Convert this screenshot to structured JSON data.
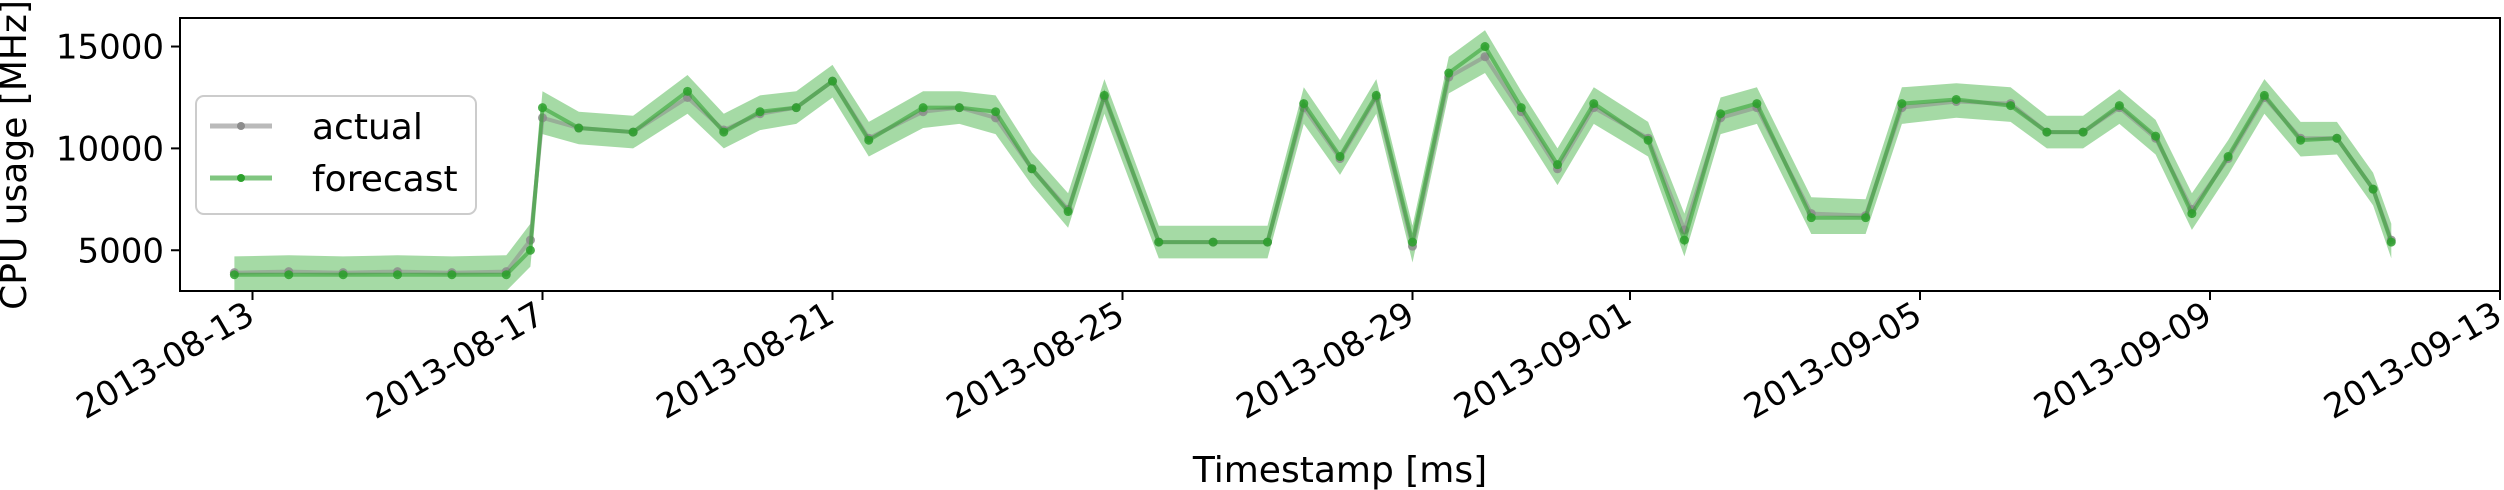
{
  "chart_data": {
    "type": "line",
    "title": "",
    "xlabel": "Timestamp [ms]",
    "ylabel": "CPU usage [MHz]",
    "x_ticks": [
      "2013-08-13",
      "2013-08-17",
      "2013-08-21",
      "2013-08-25",
      "2013-08-29",
      "2013-09-01",
      "2013-09-05",
      "2013-09-09",
      "2013-09-13"
    ],
    "y_ticks": [
      5000,
      10000,
      15000
    ],
    "ylim": [
      3000,
      16400
    ],
    "xlim": [
      "2013-08-12",
      "2013-09-13"
    ],
    "legend": {
      "placement": "upper-left",
      "entries": [
        "actual",
        "forecast"
      ]
    },
    "colors": {
      "actual": "#8c8c8c",
      "forecast": "#2ca02c",
      "forecast_fill": "#8fd18f"
    },
    "series": [
      {
        "name": "actual",
        "x": [
          "2013-08-12T18:00",
          "2013-08-13T12:00",
          "2013-08-14T06:00",
          "2013-08-15T00:00",
          "2013-08-15T18:00",
          "2013-08-16T12:00",
          "2013-08-16T20:00",
          "2013-08-17T00:00",
          "2013-08-17T12:00",
          "2013-08-18T06:00",
          "2013-08-19T00:00",
          "2013-08-19T12:00",
          "2013-08-20T00:00",
          "2013-08-20T12:00",
          "2013-08-21T00:00",
          "2013-08-21T12:00",
          "2013-08-22T06:00",
          "2013-08-22T18:00",
          "2013-08-23T06:00",
          "2013-08-23T18:00",
          "2013-08-24T06:00",
          "2013-08-24T18:00",
          "2013-08-25T12:00",
          "2013-08-26T06:00",
          "2013-08-27T00:00",
          "2013-08-27T12:00",
          "2013-08-28T00:00",
          "2013-08-28T12:00",
          "2013-08-29T00:00",
          "2013-08-29T12:00",
          "2013-08-30T00:00",
          "2013-08-30T12:00",
          "2013-08-31T00:00",
          "2013-08-31T12:00",
          "2013-09-01T06:00",
          "2013-09-01T18:00",
          "2013-09-02T06:00",
          "2013-09-02T18:00",
          "2013-09-03T12:00",
          "2013-09-04T06:00",
          "2013-09-04T18:00",
          "2013-09-05T12:00",
          "2013-09-06T06:00",
          "2013-09-06T18:00",
          "2013-09-07T06:00",
          "2013-09-07T18:00",
          "2013-09-08T06:00",
          "2013-09-08T18:00",
          "2013-09-09T06:00",
          "2013-09-09T18:00",
          "2013-09-10T06:00",
          "2013-09-10T18:00",
          "2013-09-11T06:00",
          "2013-09-11T12:00"
        ],
        "values": [
          3900,
          3950,
          3900,
          3950,
          3900,
          3950,
          5500,
          11500,
          11000,
          10800,
          12500,
          10900,
          11700,
          12000,
          13300,
          10500,
          11800,
          12000,
          11500,
          9000,
          7000,
          12500,
          5400,
          5400,
          5400,
          12000,
          9500,
          12500,
          5200,
          13500,
          14500,
          11800,
          9000,
          12000,
          10500,
          6000,
          11500,
          12000,
          6800,
          6700,
          12000,
          12300,
          12200,
          10800,
          10800,
          12000,
          10500,
          7000,
          9500,
          12500,
          10500,
          10500,
          8000,
          5500
        ]
      },
      {
        "name": "forecast",
        "x": [
          "2013-08-12T18:00",
          "2013-08-13T12:00",
          "2013-08-14T06:00",
          "2013-08-15T00:00",
          "2013-08-15T18:00",
          "2013-08-16T12:00",
          "2013-08-16T20:00",
          "2013-08-17T00:00",
          "2013-08-17T12:00",
          "2013-08-18T06:00",
          "2013-08-19T00:00",
          "2013-08-19T12:00",
          "2013-08-20T00:00",
          "2013-08-20T12:00",
          "2013-08-21T00:00",
          "2013-08-21T12:00",
          "2013-08-22T06:00",
          "2013-08-22T18:00",
          "2013-08-23T06:00",
          "2013-08-23T18:00",
          "2013-08-24T06:00",
          "2013-08-24T18:00",
          "2013-08-25T12:00",
          "2013-08-26T06:00",
          "2013-08-27T00:00",
          "2013-08-27T12:00",
          "2013-08-28T00:00",
          "2013-08-28T12:00",
          "2013-08-29T00:00",
          "2013-08-29T12:00",
          "2013-08-30T00:00",
          "2013-08-30T12:00",
          "2013-08-31T00:00",
          "2013-08-31T12:00",
          "2013-09-01T06:00",
          "2013-09-01T18:00",
          "2013-09-02T06:00",
          "2013-09-02T18:00",
          "2013-09-03T12:00",
          "2013-09-04T06:00",
          "2013-09-04T18:00",
          "2013-09-05T12:00",
          "2013-09-06T06:00",
          "2013-09-06T18:00",
          "2013-09-07T06:00",
          "2013-09-07T18:00",
          "2013-09-08T06:00",
          "2013-09-08T18:00",
          "2013-09-09T06:00",
          "2013-09-09T18:00",
          "2013-09-10T06:00",
          "2013-09-10T18:00",
          "2013-09-11T06:00",
          "2013-09-11T12:00"
        ],
        "values": [
          3800,
          3800,
          3800,
          3800,
          3800,
          3800,
          5000,
          12000,
          11000,
          10800,
          12800,
          10800,
          11800,
          12000,
          13300,
          10400,
          12000,
          12000,
          11800,
          9000,
          6900,
          12600,
          5400,
          5400,
          5400,
          12200,
          9600,
          12600,
          5400,
          13700,
          15000,
          12000,
          9200,
          12200,
          10400,
          5500,
          11700,
          12200,
          6600,
          6600,
          12200,
          12400,
          12100,
          10800,
          10800,
          12100,
          10600,
          6800,
          9600,
          12600,
          10400,
          10500,
          8000,
          5400
        ]
      }
    ]
  }
}
